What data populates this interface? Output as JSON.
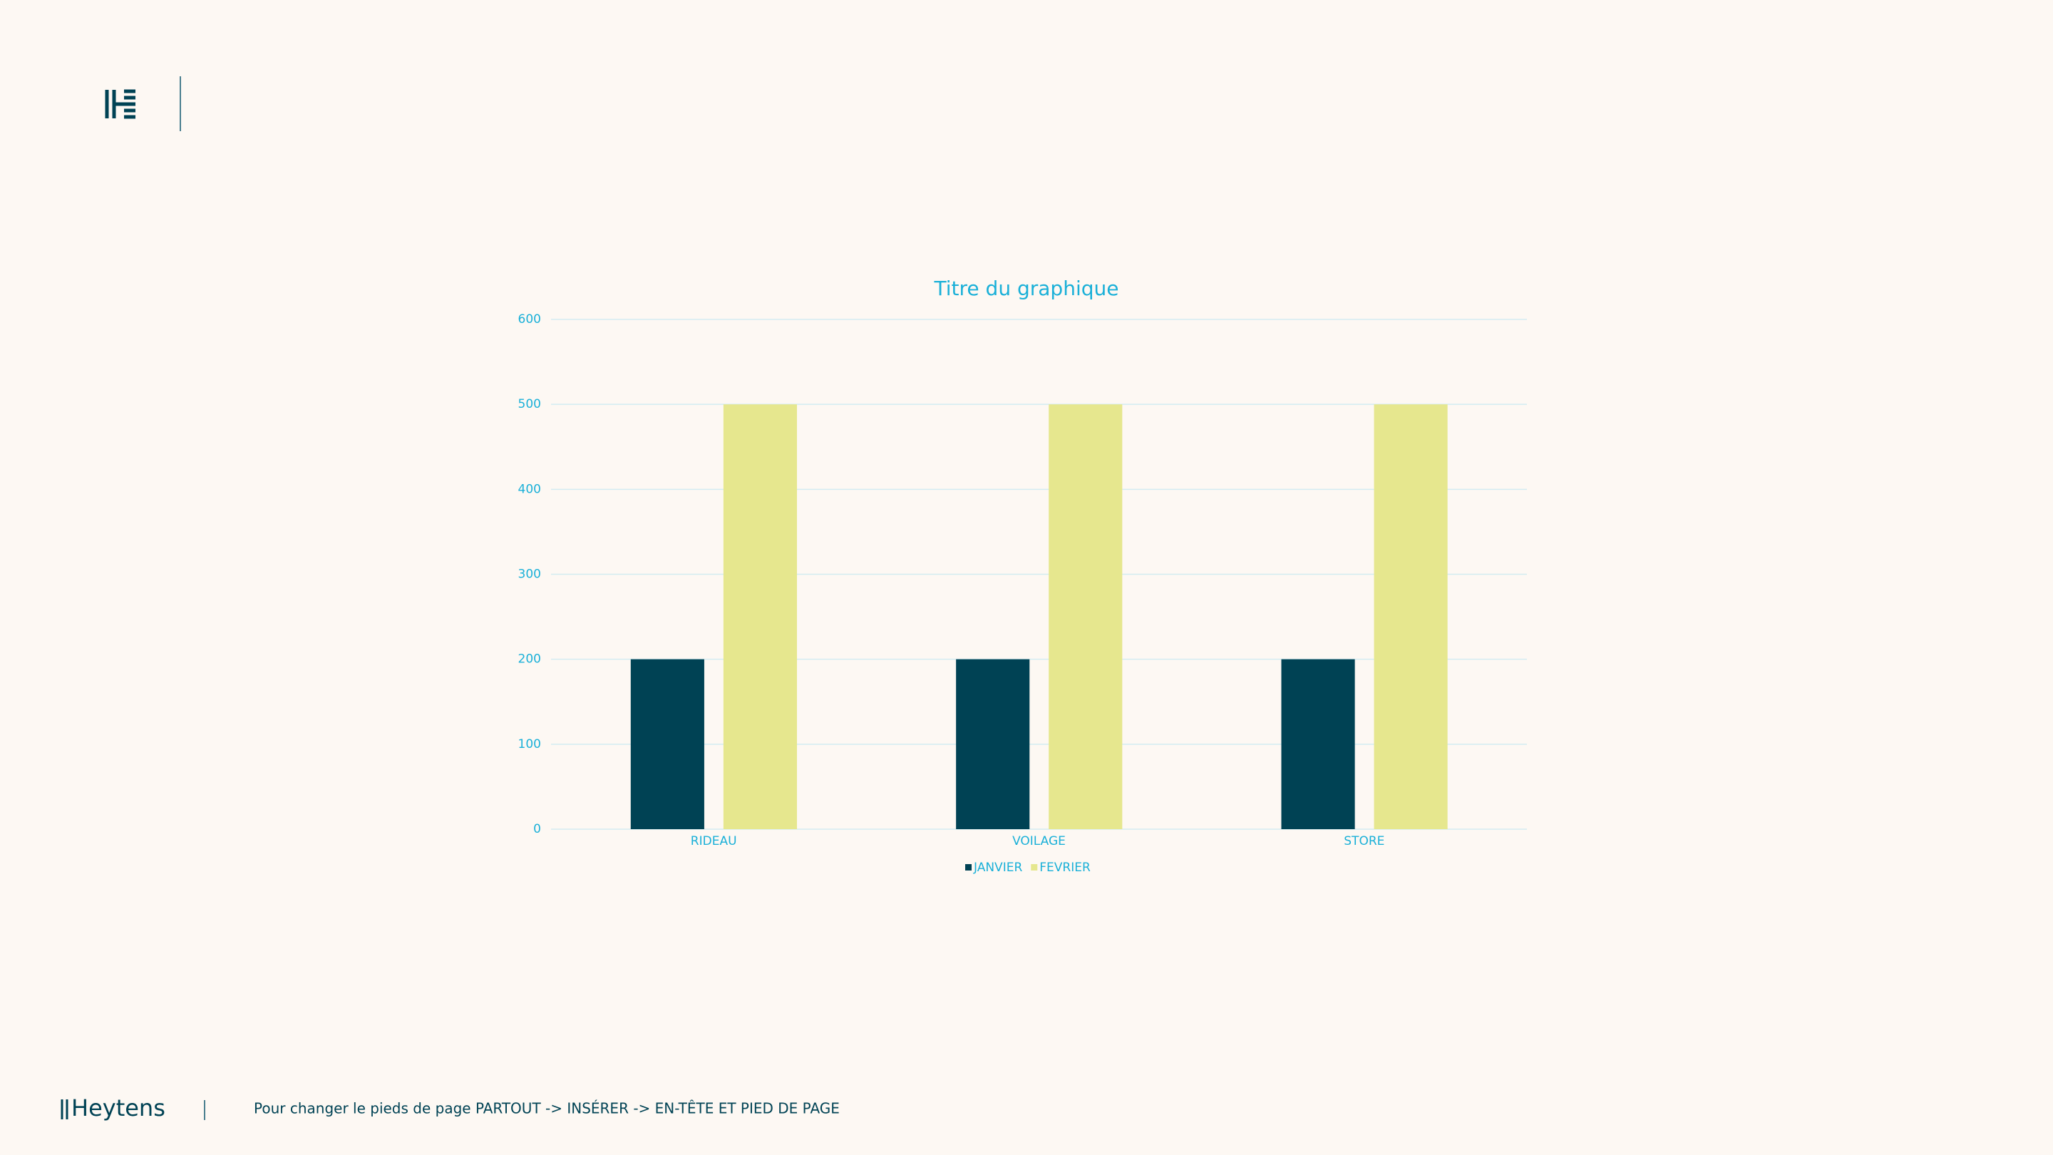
{
  "chart_data": {
    "type": "bar",
    "title": "Titre du graphique",
    "categories": [
      "RIDEAU",
      "VOILAGE",
      "STORE"
    ],
    "series": [
      {
        "name": "JANVIER",
        "color": "#004254",
        "values": [
          200,
          200,
          200
        ]
      },
      {
        "name": "FEVRIER",
        "color": "#e6e78e",
        "values": [
          500,
          500,
          500
        ]
      }
    ],
    "ylim": [
      0,
      600
    ],
    "yticks": [
      0,
      100,
      200,
      300,
      400,
      500,
      600
    ],
    "grid": true,
    "legend": "bottom"
  },
  "footer": {
    "brand": "Heytens",
    "text": "Pour changer le pieds de page PARTOUT -> INSÉRER -> EN-TÊTE ET PIED DE PAGE"
  }
}
